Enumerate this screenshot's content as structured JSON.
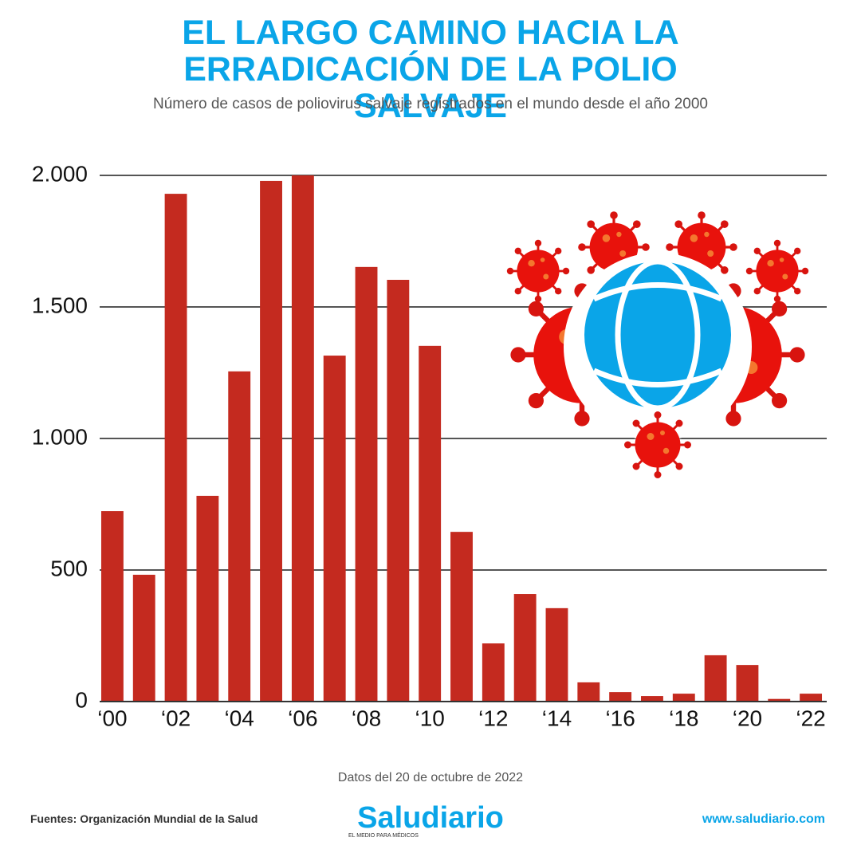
{
  "chart_data": {
    "type": "bar",
    "title": "EL LARGO CAMINO HACIA LA ERRADICACIÓN DE LA POLIO SALVAJE",
    "subtitle": "Número de casos de poliovirus salvaje registrados en el mundo desde el año 2000",
    "categories": [
      "‘00",
      null,
      "‘02",
      null,
      "‘04",
      null,
      "‘06",
      null,
      "‘08",
      null,
      "‘10",
      null,
      "‘12",
      null,
      "‘14",
      null,
      "‘16",
      null,
      "‘18",
      null,
      "‘20",
      null,
      "‘22"
    ],
    "values": [
      724,
      482,
      1930,
      782,
      1255,
      1979,
      2000,
      1315,
      1652,
      1603,
      1352,
      645,
      221,
      409,
      355,
      73,
      36,
      21,
      30,
      176,
      139,
      10,
      30
    ],
    "color": "#c42a1f",
    "ylim": [
      0,
      2000
    ],
    "yticks": [
      0,
      500,
      {
        "value": 1000,
        "label": "1.000"
      },
      {
        "value": 1500,
        "label": "1.500"
      },
      {
        "value": 2000,
        "label": "2.000"
      }
    ],
    "grid": true,
    "note": "Datos del 20 de octubre de 2022"
  },
  "footer": {
    "source": "Fuentes: Organización Mundial de la Salud",
    "brand": "Saludiario",
    "tagline": "EL MEDIO PARA MÉDICOS",
    "url": "www.saludiario.com"
  }
}
